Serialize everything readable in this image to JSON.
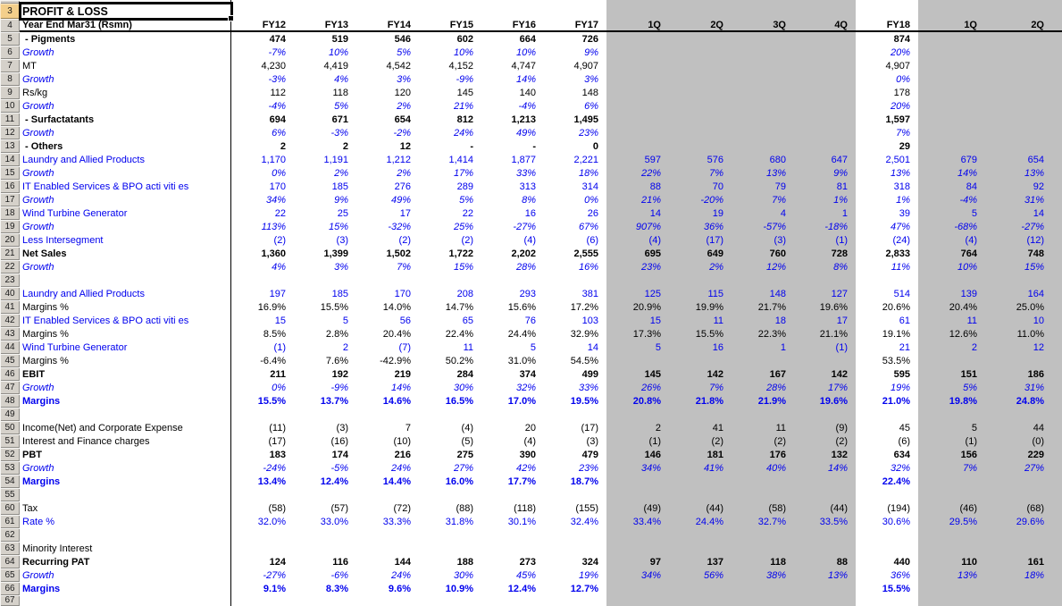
{
  "appearance": {
    "font_blue": "#0000ee",
    "quarter_band_gray": "#c0c0c0",
    "selected_row_header_tan": "#f3cf8b",
    "gutter_gray": "#d5d1ca"
  },
  "sheet": {
    "title": "PROFIT & LOSS",
    "header_label": "Year End Mar31 (Rsmn)",
    "columns": [
      "FY12",
      "FY13",
      "FY14",
      "FY15",
      "FY16",
      "FY17",
      "1Q",
      "2Q",
      "3Q",
      "4Q",
      "FY18",
      "1Q",
      "2Q"
    ],
    "rows": [
      {
        "num": "",
        "type": "sliver",
        "label": "",
        "values": []
      },
      {
        "num": "3",
        "type": "title",
        "label": "",
        "values": []
      },
      {
        "num": "4",
        "type": "header",
        "label": "",
        "values": []
      },
      {
        "num": "5",
        "type": "bold",
        "label": " - Pigments",
        "values": [
          "474",
          "519",
          "546",
          "602",
          "664",
          "726",
          "",
          "",
          "",
          "",
          "874",
          "",
          ""
        ]
      },
      {
        "num": "6",
        "type": "growth",
        "label": "Growth",
        "values": [
          "-7%",
          "10%",
          "5%",
          "10%",
          "10%",
          "9%",
          "",
          "",
          "",
          "",
          "20%",
          "",
          ""
        ]
      },
      {
        "num": "7",
        "type": "black",
        "label": "MT",
        "values": [
          "4,230",
          "4,419",
          "4,542",
          "4,152",
          "4,747",
          "4,907",
          "",
          "",
          "",
          "",
          "4,907",
          "",
          ""
        ]
      },
      {
        "num": "8",
        "type": "growth",
        "label": "Growth",
        "values": [
          "-3%",
          "4%",
          "3%",
          "-9%",
          "14%",
          "3%",
          "",
          "",
          "",
          "",
          "0%",
          "",
          ""
        ]
      },
      {
        "num": "9",
        "type": "black",
        "label": "Rs/kg",
        "values": [
          "112",
          "118",
          "120",
          "145",
          "140",
          "148",
          "",
          "",
          "",
          "",
          "178",
          "",
          ""
        ]
      },
      {
        "num": "10",
        "type": "growth",
        "label": "Growth",
        "values": [
          "-4%",
          "5%",
          "2%",
          "21%",
          "-4%",
          "6%",
          "",
          "",
          "",
          "",
          "20%",
          "",
          ""
        ]
      },
      {
        "num": "11",
        "type": "bold",
        "label": " - Surfactatants",
        "values": [
          "694",
          "671",
          "654",
          "812",
          "1,213",
          "1,495",
          "",
          "",
          "",
          "",
          "1,597",
          "",
          ""
        ]
      },
      {
        "num": "12",
        "type": "growth",
        "label": "Growth",
        "values": [
          "6%",
          "-3%",
          "-2%",
          "24%",
          "49%",
          "23%",
          "",
          "",
          "",
          "",
          "7%",
          "",
          ""
        ]
      },
      {
        "num": "13",
        "type": "bold",
        "label": " - Others",
        "values": [
          "2",
          "2",
          "12",
          "-",
          "-",
          "0",
          "",
          "",
          "",
          "",
          "29",
          "",
          ""
        ]
      },
      {
        "num": "14",
        "type": "blue",
        "label": "Laundry and Allied Products",
        "values": [
          "1,170",
          "1,191",
          "1,212",
          "1,414",
          "1,877",
          "2,221",
          "597",
          "576",
          "680",
          "647",
          "2,501",
          "679",
          "654"
        ]
      },
      {
        "num": "15",
        "type": "growth",
        "label": "Growth",
        "values": [
          "0%",
          "2%",
          "2%",
          "17%",
          "33%",
          "18%",
          "22%",
          "7%",
          "13%",
          "9%",
          "13%",
          "14%",
          "13%"
        ]
      },
      {
        "num": "16",
        "type": "blue",
        "label": "IT Enabled Services & BPO acti viti es",
        "values": [
          "170",
          "185",
          "276",
          "289",
          "313",
          "314",
          "88",
          "70",
          "79",
          "81",
          "318",
          "84",
          "92"
        ]
      },
      {
        "num": "17",
        "type": "growth",
        "label": "Growth",
        "values": [
          "34%",
          "9%",
          "49%",
          "5%",
          "8%",
          "0%",
          "21%",
          "-20%",
          "7%",
          "1%",
          "1%",
          "-4%",
          "31%"
        ]
      },
      {
        "num": "18",
        "type": "blue",
        "label": "Wind Turbine Generator",
        "values": [
          "22",
          "25",
          "17",
          "22",
          "16",
          "26",
          "14",
          "19",
          "4",
          "1",
          "39",
          "5",
          "14"
        ]
      },
      {
        "num": "19",
        "type": "growth",
        "label": "Growth",
        "values": [
          "113%",
          "15%",
          "-32%",
          "25%",
          "-27%",
          "67%",
          "907%",
          "36%",
          "-57%",
          "-18%",
          "47%",
          "-68%",
          "-27%"
        ]
      },
      {
        "num": "20",
        "type": "blue",
        "label": "Less Intersegment",
        "values": [
          "(2)",
          "(3)",
          "(2)",
          "(2)",
          "(4)",
          "(6)",
          "(4)",
          "(17)",
          "(3)",
          "(1)",
          "(24)",
          "(4)",
          "(12)"
        ]
      },
      {
        "num": "21",
        "type": "bold",
        "label": "Net Sales",
        "values": [
          "1,360",
          "1,399",
          "1,502",
          "1,722",
          "2,202",
          "2,555",
          "695",
          "649",
          "760",
          "728",
          "2,833",
          "764",
          "748"
        ]
      },
      {
        "num": "22",
        "type": "growth",
        "label": "Growth",
        "values": [
          "4%",
          "3%",
          "7%",
          "15%",
          "28%",
          "16%",
          "23%",
          "2%",
          "12%",
          "8%",
          "11%",
          "10%",
          "15%"
        ]
      },
      {
        "num": "23",
        "type": "black",
        "label": "",
        "values": []
      },
      {
        "num": "40",
        "type": "blue",
        "label": "Laundry and Allied Products",
        "values": [
          "197",
          "185",
          "170",
          "208",
          "293",
          "381",
          "125",
          "115",
          "148",
          "127",
          "514",
          "139",
          "164"
        ]
      },
      {
        "num": "41",
        "type": "black",
        "label": "Margins %",
        "values": [
          "16.9%",
          "15.5%",
          "14.0%",
          "14.7%",
          "15.6%",
          "17.2%",
          "20.9%",
          "19.9%",
          "21.7%",
          "19.6%",
          "20.6%",
          "20.4%",
          "25.0%"
        ]
      },
      {
        "num": "42",
        "type": "blue",
        "label": "IT Enabled Services & BPO acti viti es",
        "values": [
          "15",
          "5",
          "56",
          "65",
          "76",
          "103",
          "15",
          "11",
          "18",
          "17",
          "61",
          "11",
          "10"
        ]
      },
      {
        "num": "43",
        "type": "black",
        "label": "Margins %",
        "values": [
          "8.5%",
          "2.8%",
          "20.4%",
          "22.4%",
          "24.4%",
          "32.9%",
          "17.3%",
          "15.5%",
          "22.3%",
          "21.1%",
          "19.1%",
          "12.6%",
          "11.0%"
        ]
      },
      {
        "num": "44",
        "type": "blue",
        "label": "Wind Turbine Generator",
        "values": [
          "(1)",
          "2",
          "(7)",
          "11",
          "5",
          "14",
          "5",
          "16",
          "1",
          "(1)",
          "21",
          "2",
          "12"
        ]
      },
      {
        "num": "45",
        "type": "black",
        "label": "Margins %",
        "values": [
          "-6.4%",
          "7.6%",
          "-42.9%",
          "50.2%",
          "31.0%",
          "54.5%",
          "",
          "",
          "",
          "",
          "53.5%",
          "",
          ""
        ]
      },
      {
        "num": "46",
        "type": "bold",
        "label": "EBIT",
        "values": [
          "211",
          "192",
          "219",
          "284",
          "374",
          "499",
          "145",
          "142",
          "167",
          "142",
          "595",
          "151",
          "186"
        ]
      },
      {
        "num": "47",
        "type": "growth",
        "label": "Growth",
        "values": [
          "0%",
          "-9%",
          "14%",
          "30%",
          "32%",
          "33%",
          "26%",
          "7%",
          "28%",
          "17%",
          "19%",
          "5%",
          "31%"
        ]
      },
      {
        "num": "48",
        "type": "bluebold",
        "label": "Margins",
        "values": [
          "15.5%",
          "13.7%",
          "14.6%",
          "16.5%",
          "17.0%",
          "19.5%",
          "20.8%",
          "21.8%",
          "21.9%",
          "19.6%",
          "21.0%",
          "19.8%",
          "24.8%"
        ]
      },
      {
        "num": "49",
        "type": "black",
        "label": "",
        "values": []
      },
      {
        "num": "50",
        "type": "black",
        "label": "Income(Net) and Corporate Expense",
        "values": [
          "(11)",
          "(3)",
          "7",
          "(4)",
          "20",
          "(17)",
          "2",
          "41",
          "11",
          "(9)",
          "45",
          "5",
          "44"
        ]
      },
      {
        "num": "51",
        "type": "black",
        "label": "Interest and Finance charges",
        "values": [
          "(17)",
          "(16)",
          "(10)",
          "(5)",
          "(4)",
          "(3)",
          "(1)",
          "(2)",
          "(2)",
          "(2)",
          "(6)",
          "(1)",
          "(0)"
        ]
      },
      {
        "num": "52",
        "type": "bold",
        "label": "PBT",
        "values": [
          "183",
          "174",
          "216",
          "275",
          "390",
          "479",
          "146",
          "181",
          "176",
          "132",
          "634",
          "156",
          "229"
        ]
      },
      {
        "num": "53",
        "type": "growth",
        "label": "Growth",
        "values": [
          "-24%",
          "-5%",
          "24%",
          "27%",
          "42%",
          "23%",
          "34%",
          "41%",
          "40%",
          "14%",
          "32%",
          "7%",
          "27%"
        ]
      },
      {
        "num": "54",
        "type": "bluebold",
        "label": "Margins",
        "values": [
          "13.4%",
          "12.4%",
          "14.4%",
          "16.0%",
          "17.7%",
          "18.7%",
          "",
          "",
          "",
          "",
          "22.4%",
          "",
          ""
        ]
      },
      {
        "num": "55",
        "type": "black",
        "label": "",
        "values": []
      },
      {
        "num": "60",
        "type": "black",
        "label": "Tax",
        "values": [
          "(58)",
          "(57)",
          "(72)",
          "(88)",
          "(118)",
          "(155)",
          "(49)",
          "(44)",
          "(58)",
          "(44)",
          "(194)",
          "(46)",
          "(68)"
        ]
      },
      {
        "num": "61",
        "type": "blue",
        "label": "Rate %",
        "values": [
          "32.0%",
          "33.0%",
          "33.3%",
          "31.8%",
          "30.1%",
          "32.4%",
          "33.4%",
          "24.4%",
          "32.7%",
          "33.5%",
          "30.6%",
          "29.5%",
          "29.6%"
        ]
      },
      {
        "num": "62",
        "type": "black",
        "label": "",
        "values": []
      },
      {
        "num": "63",
        "type": "black",
        "label": "Minority Interest",
        "values": []
      },
      {
        "num": "64",
        "type": "bold",
        "label": "Recurring PAT",
        "values": [
          "124",
          "116",
          "144",
          "188",
          "273",
          "324",
          "97",
          "137",
          "118",
          "88",
          "440",
          "110",
          "161"
        ]
      },
      {
        "num": "65",
        "type": "growth",
        "label": "Growth",
        "values": [
          "-27%",
          "-6%",
          "24%",
          "30%",
          "45%",
          "19%",
          "34%",
          "56%",
          "38%",
          "13%",
          "36%",
          "13%",
          "18%"
        ]
      },
      {
        "num": "66",
        "type": "bluebold",
        "label": "Margins",
        "values": [
          "9.1%",
          "8.3%",
          "9.6%",
          "10.9%",
          "12.4%",
          "12.7%",
          "",
          "",
          "",
          "",
          "15.5%",
          "",
          ""
        ]
      },
      {
        "num": "67",
        "type": "partial",
        "label": "",
        "values": []
      }
    ]
  }
}
